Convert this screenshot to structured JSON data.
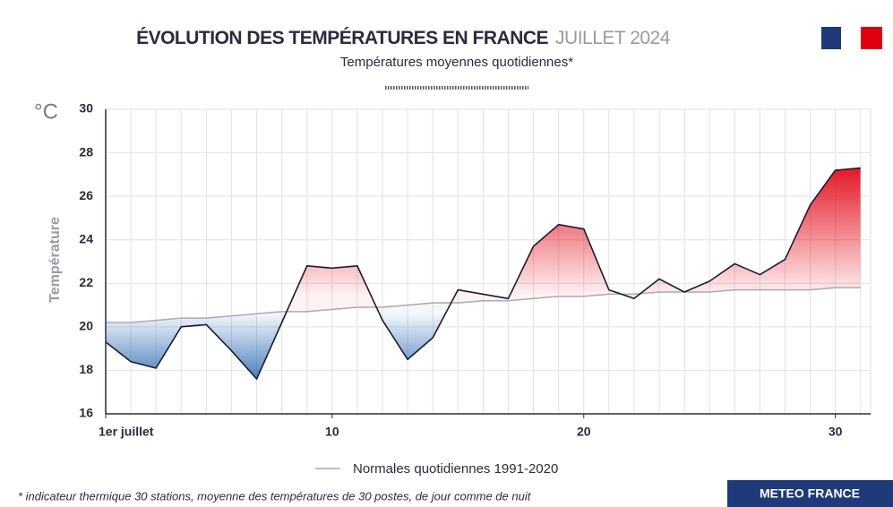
{
  "chart_data": {
    "type": "line",
    "title": "ÉVOLUTION DES TEMPÉRATURES EN FRANCE",
    "title_period": "JUILLET 2024",
    "subtitle": "Températures moyennes quotidiennes*",
    "unit": "°C",
    "y_label": "Température",
    "footnote": "* indicateur thermique 30 stations, moyenne des températures de 30 postes, de jour comme de nuit",
    "brand": "METEO FRANCE",
    "x": [
      1,
      2,
      3,
      4,
      5,
      6,
      7,
      8,
      9,
      10,
      11,
      12,
      13,
      14,
      15,
      16,
      17,
      18,
      19,
      20,
      21,
      22,
      23,
      24,
      25,
      26,
      27,
      28,
      29,
      30,
      31
    ],
    "series": [
      {
        "color": "#1b1b2f",
        "values": [
          19.3,
          18.4,
          18.1,
          20.0,
          20.1,
          18.9,
          17.6,
          20.2,
          22.8,
          22.7,
          22.8,
          20.3,
          18.5,
          19.5,
          21.7,
          21.5,
          21.3,
          23.7,
          24.7,
          24.5,
          21.7,
          21.3,
          22.2,
          21.6,
          22.1,
          22.9,
          22.4,
          23.1,
          25.6,
          27.2,
          27.3
        ]
      },
      {
        "name": "Normales quotidiennes 1991-2020",
        "color": "#a9a9b3",
        "values": [
          20.2,
          20.2,
          20.3,
          20.4,
          20.4,
          20.5,
          20.6,
          20.7,
          20.7,
          20.8,
          20.9,
          20.9,
          21.0,
          21.1,
          21.1,
          21.2,
          21.2,
          21.3,
          21.4,
          21.4,
          21.5,
          21.5,
          21.6,
          21.6,
          21.6,
          21.7,
          21.7,
          21.7,
          21.7,
          21.8,
          21.8
        ]
      }
    ],
    "above_color": "#e1000f",
    "below_color": "#2e6db4",
    "xlim": [
      1,
      31.4
    ],
    "xticks": [
      {
        "value": 1,
        "label": "1er juillet"
      },
      10,
      20,
      30
    ],
    "ylim": [
      16,
      30
    ],
    "yticks": [
      16,
      18,
      20,
      22,
      24,
      26,
      28,
      30
    ],
    "grid": true
  }
}
